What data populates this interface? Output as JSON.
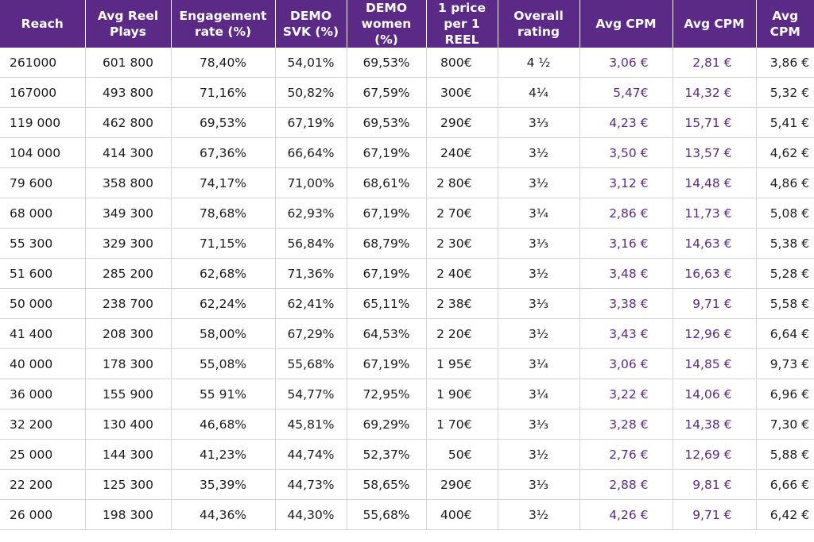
{
  "colors": {
    "header_bg": "#5b2a86",
    "accent_text": "#5b2a86",
    "grid": "#d4d4d4"
  },
  "table": {
    "headers": [
      [
        "Reach",
        ""
      ],
      [
        "Avg Reel",
        "Plays"
      ],
      [
        "Engagement",
        "rate (%)"
      ],
      [
        "DEMO",
        "SVK (%)"
      ],
      [
        "DEMO",
        "women (%)"
      ],
      [
        "1 price",
        "per 1 REEL"
      ],
      [
        "Overall",
        "rating"
      ],
      [
        "Avg CPM",
        ""
      ],
      [
        "Avg CPM",
        ""
      ],
      [
        "Avg",
        "CPM"
      ]
    ],
    "rows": [
      [
        "261000",
        "601 800",
        "78,40%",
        "54,01%",
        "69,53%",
        "800€",
        "4 ½",
        "3,06 €",
        "2,81 €",
        "3,86 €"
      ],
      [
        "167000",
        "493 800",
        "71,16%",
        "50,82%",
        "67,59%",
        "300€",
        "4¼",
        "5,47€",
        "14,32 €",
        "5,32 €"
      ],
      [
        "119 000",
        "462 800",
        "69,53%",
        "67,19%",
        "69,53%",
        "290€",
        "3⅓",
        "4,23 €",
        "15,71 €",
        "5,41 €"
      ],
      [
        "104 000",
        "414 300",
        "67,36%",
        "66,64%",
        "67,19%",
        "240€",
        "3½",
        "3,50 €",
        "13,57 €",
        "4,62 €"
      ],
      [
        "79 600",
        "358 800",
        "74,17%",
        "71,00%",
        "68,61%",
        "2 80€",
        "3½",
        "3,12 €",
        "14,48 €",
        "4,86 €"
      ],
      [
        "68 000",
        "349 300",
        "78,68%",
        "62,93%",
        "67,19%",
        "2 70€",
        "3¼",
        "2,86 €",
        "11,73 €",
        "5,08 €"
      ],
      [
        "55 300",
        "329 300",
        "71,15%",
        "56,84%",
        "68,79%",
        "2 30€",
        "3⅓",
        "3,16 €",
        "14,63 €",
        "5,38 €"
      ],
      [
        "51 600",
        "285 200",
        "62,68%",
        "71,36%",
        "67,19%",
        "2 40€",
        "3½",
        "3,48 €",
        "16,63 €",
        "5,28 €"
      ],
      [
        "50 000",
        "238 700",
        "62,24%",
        "62,41%",
        "65,11%",
        "2 38€",
        "3⅓",
        "3,38 €",
        "9,71 €",
        "5,58 €"
      ],
      [
        "41 400",
        "208 300",
        "58,00%",
        "67,29%",
        "64,53%",
        "2 20€",
        "3½",
        "3,43 €",
        "12,96 €",
        "6,64 €"
      ],
      [
        "40 000",
        "178 300",
        "55,08%",
        "55,68%",
        "67,19%",
        "1 95€",
        "3¼",
        "3,06 €",
        "14,85 €",
        "9,73 €"
      ],
      [
        "36 000",
        "155 900",
        "55 91%",
        "54,77%",
        "72,95%",
        "1 90€",
        "3¼",
        "3,22 €",
        "14,06 €",
        "6,96 €"
      ],
      [
        "32 200",
        "130 400",
        "46,68%",
        "45,81%",
        "69,29%",
        "1 70€",
        "3⅓",
        "3,28 €",
        "14,38 €",
        "7,30 €"
      ],
      [
        "25 000",
        "144 300",
        "41,23%",
        "44,74%",
        "52,37%",
        "50€",
        "3½",
        "2,76 €",
        "12,69 €",
        "5,88 €"
      ],
      [
        "22 200",
        "125 300",
        "35,39%",
        "44,73%",
        "58,65%",
        "290€",
        "3⅓",
        "2,88 €",
        "9,81 €",
        "6,66 €"
      ],
      [
        "26 000",
        "198 300",
        "44,36%",
        "44,30%",
        "55,68%",
        "400€",
        "3½",
        "4,26 €",
        "9,71 €",
        "6,42 €"
      ]
    ]
  }
}
